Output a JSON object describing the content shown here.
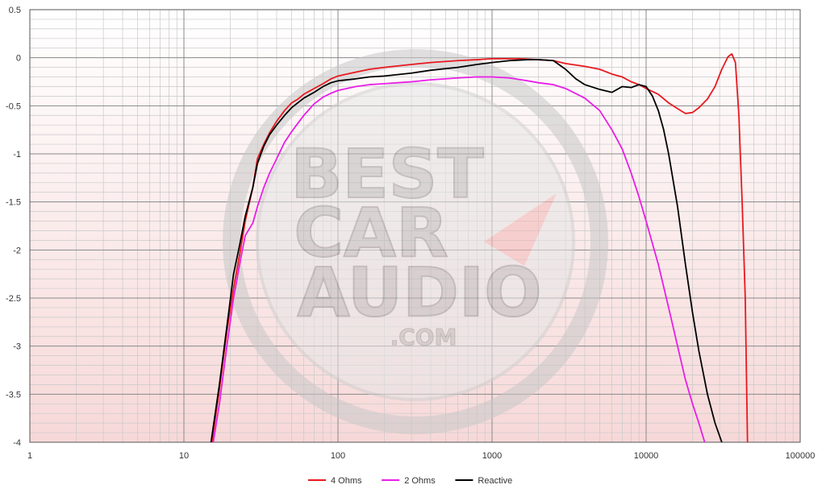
{
  "chart_data": {
    "type": "line",
    "title": "",
    "xlabel": "",
    "ylabel": "",
    "x_scale": "log",
    "xlim": [
      1,
      100000
    ],
    "ylim": [
      -4,
      0.5
    ],
    "x_ticks": [
      1,
      10,
      100,
      1000,
      10000,
      100000
    ],
    "x_tick_labels": [
      "1",
      "10",
      "100",
      "1000",
      "10000",
      "100000"
    ],
    "y_ticks": [
      0.5,
      0,
      -0.5,
      -1,
      -1.5,
      -2,
      -2.5,
      -3,
      -3.5,
      -4
    ],
    "y_tick_labels": [
      "0.5",
      "0",
      "-0.5",
      "-1",
      "-1.5",
      "-2",
      "-2.5",
      "-3",
      "-3.5",
      "-4"
    ],
    "grid": true,
    "background_gradient": [
      "#ffffff",
      "#f7d8d8"
    ],
    "legend_position": "bottom",
    "watermark": {
      "lines": [
        "BEST",
        "CAR",
        "AUDIO"
      ],
      "suffix": ".COM"
    },
    "series": [
      {
        "name": "4 Ohms",
        "color": "#e8191f",
        "points": [
          [
            15.2,
            -4
          ],
          [
            17,
            -3.45
          ],
          [
            19,
            -2.85
          ],
          [
            21,
            -2.4
          ],
          [
            23,
            -2.05
          ],
          [
            25,
            -1.7
          ],
          [
            28,
            -1.35
          ],
          [
            30,
            -1.05
          ],
          [
            33,
            -0.9
          ],
          [
            36,
            -0.78
          ],
          [
            40,
            -0.66
          ],
          [
            45,
            -0.55
          ],
          [
            50,
            -0.47
          ],
          [
            55,
            -0.43
          ],
          [
            60,
            -0.38
          ],
          [
            70,
            -0.32
          ],
          [
            80,
            -0.27
          ],
          [
            90,
            -0.22
          ],
          [
            100,
            -0.19
          ],
          [
            130,
            -0.15
          ],
          [
            160,
            -0.12
          ],
          [
            200,
            -0.1
          ],
          [
            300,
            -0.07
          ],
          [
            400,
            -0.05
          ],
          [
            600,
            -0.03
          ],
          [
            800,
            -0.02
          ],
          [
            1000,
            -0.01
          ],
          [
            1500,
            -0.01
          ],
          [
            2000,
            -0.02
          ],
          [
            2500,
            -0.03
          ],
          [
            3000,
            -0.06
          ],
          [
            4000,
            -0.09
          ],
          [
            5000,
            -0.12
          ],
          [
            6000,
            -0.17
          ],
          [
            7000,
            -0.2
          ],
          [
            8000,
            -0.25
          ],
          [
            9000,
            -0.28
          ],
          [
            10000,
            -0.32
          ],
          [
            12000,
            -0.38
          ],
          [
            14000,
            -0.47
          ],
          [
            16000,
            -0.53
          ],
          [
            18000,
            -0.58
          ],
          [
            20000,
            -0.57
          ],
          [
            22000,
            -0.52
          ],
          [
            25000,
            -0.43
          ],
          [
            28000,
            -0.3
          ],
          [
            31000,
            -0.12
          ],
          [
            34000,
            0.01
          ],
          [
            36000,
            0.04
          ],
          [
            38000,
            -0.05
          ],
          [
            40000,
            -0.6
          ],
          [
            42000,
            -1.5
          ],
          [
            44000,
            -2.5
          ],
          [
            45500,
            -4
          ]
        ]
      },
      {
        "name": "2 Ohms",
        "color": "#e81ee8",
        "points": [
          [
            15.5,
            -4
          ],
          [
            17,
            -3.6
          ],
          [
            19,
            -3.0
          ],
          [
            21,
            -2.5
          ],
          [
            23,
            -2.15
          ],
          [
            25,
            -1.85
          ],
          [
            28,
            -1.72
          ],
          [
            30,
            -1.55
          ],
          [
            33,
            -1.35
          ],
          [
            36,
            -1.2
          ],
          [
            40,
            -1.05
          ],
          [
            45,
            -0.88
          ],
          [
            50,
            -0.77
          ],
          [
            55,
            -0.68
          ],
          [
            60,
            -0.6
          ],
          [
            70,
            -0.48
          ],
          [
            80,
            -0.41
          ],
          [
            90,
            -0.37
          ],
          [
            100,
            -0.34
          ],
          [
            130,
            -0.3
          ],
          [
            160,
            -0.28
          ],
          [
            200,
            -0.27
          ],
          [
            300,
            -0.25
          ],
          [
            400,
            -0.23
          ],
          [
            600,
            -0.21
          ],
          [
            800,
            -0.2
          ],
          [
            1000,
            -0.2
          ],
          [
            1300,
            -0.21
          ],
          [
            1700,
            -0.24
          ],
          [
            2000,
            -0.26
          ],
          [
            2500,
            -0.28
          ],
          [
            3000,
            -0.32
          ],
          [
            4000,
            -0.42
          ],
          [
            5000,
            -0.55
          ],
          [
            6000,
            -0.75
          ],
          [
            7000,
            -0.95
          ],
          [
            8000,
            -1.2
          ],
          [
            9000,
            -1.45
          ],
          [
            10000,
            -1.7
          ],
          [
            12000,
            -2.15
          ],
          [
            14000,
            -2.6
          ],
          [
            16000,
            -3.0
          ],
          [
            18000,
            -3.35
          ],
          [
            20000,
            -3.6
          ],
          [
            22000,
            -3.8
          ],
          [
            24000,
            -4
          ]
        ]
      },
      {
        "name": "Reactive",
        "color": "#000000",
        "points": [
          [
            15,
            -4
          ],
          [
            17,
            -3.4
          ],
          [
            19,
            -2.8
          ],
          [
            21,
            -2.25
          ],
          [
            23,
            -1.95
          ],
          [
            25,
            -1.65
          ],
          [
            28,
            -1.35
          ],
          [
            30,
            -1.1
          ],
          [
            33,
            -0.92
          ],
          [
            36,
            -0.8
          ],
          [
            40,
            -0.7
          ],
          [
            45,
            -0.6
          ],
          [
            50,
            -0.52
          ],
          [
            60,
            -0.42
          ],
          [
            70,
            -0.36
          ],
          [
            80,
            -0.3
          ],
          [
            90,
            -0.26
          ],
          [
            100,
            -0.24
          ],
          [
            130,
            -0.22
          ],
          [
            160,
            -0.2
          ],
          [
            200,
            -0.19
          ],
          [
            300,
            -0.16
          ],
          [
            400,
            -0.13
          ],
          [
            600,
            -0.1
          ],
          [
            800,
            -0.07
          ],
          [
            1000,
            -0.05
          ],
          [
            1300,
            -0.03
          ],
          [
            1700,
            -0.02
          ],
          [
            2000,
            -0.02
          ],
          [
            2500,
            -0.03
          ],
          [
            3000,
            -0.12
          ],
          [
            3500,
            -0.22
          ],
          [
            4000,
            -0.28
          ],
          [
            5000,
            -0.33
          ],
          [
            6000,
            -0.36
          ],
          [
            7000,
            -0.3
          ],
          [
            8000,
            -0.31
          ],
          [
            9000,
            -0.28
          ],
          [
            10000,
            -0.3
          ],
          [
            11000,
            -0.4
          ],
          [
            12000,
            -0.55
          ],
          [
            13000,
            -0.75
          ],
          [
            14000,
            -1.0
          ],
          [
            16000,
            -1.55
          ],
          [
            18000,
            -2.15
          ],
          [
            20000,
            -2.65
          ],
          [
            22000,
            -3.05
          ],
          [
            25000,
            -3.5
          ],
          [
            28000,
            -3.8
          ],
          [
            31000,
            -4
          ]
        ]
      }
    ]
  }
}
